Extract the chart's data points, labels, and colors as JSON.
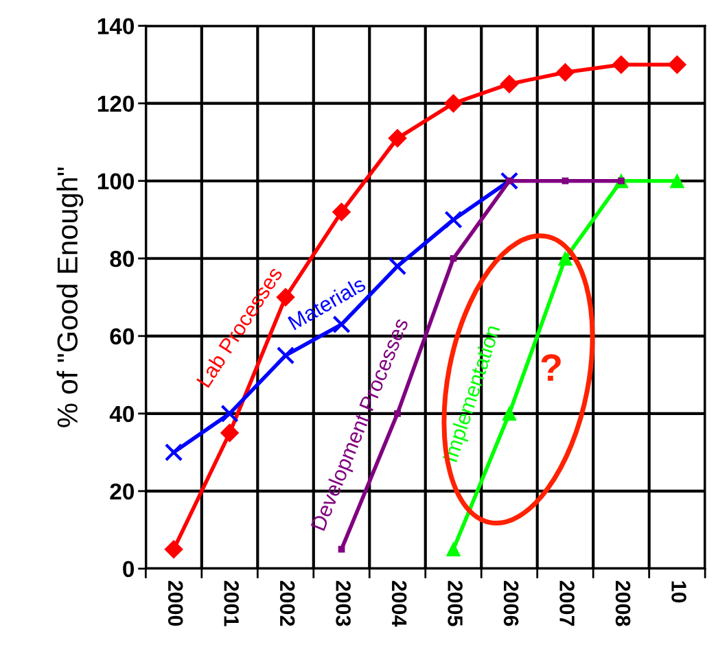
{
  "chart_data": {
    "type": "line",
    "ylabel": "% of \"Good Enough\"",
    "categories": [
      "2000",
      "2001",
      "2002",
      "2003",
      "2004",
      "2005",
      "2006",
      "2007",
      "2008",
      "10"
    ],
    "series": [
      {
        "name": "Lab Processes",
        "color": "#ff0000",
        "marker": "diamond",
        "values": [
          5,
          35,
          70,
          92,
          111,
          120,
          125,
          128,
          130,
          130
        ]
      },
      {
        "name": "Materials",
        "color": "#0000ff",
        "marker": "cross",
        "values": [
          30,
          40,
          55,
          63,
          78,
          90,
          100,
          null,
          null,
          null
        ]
      },
      {
        "name": "Development Processes",
        "color": "#800080",
        "marker": "square",
        "values": [
          null,
          null,
          null,
          5,
          40,
          80,
          100,
          100,
          100,
          null
        ]
      },
      {
        "name": "Implementation",
        "color": "#00ff00",
        "marker": "triangle",
        "values": [
          null,
          null,
          null,
          null,
          null,
          5,
          40,
          80,
          100,
          100
        ]
      }
    ],
    "annotations": [
      "?"
    ],
    "ylim": [
      0,
      140
    ],
    "yticks": [
      0,
      20,
      40,
      60,
      80,
      100,
      120,
      140
    ],
    "grid": true,
    "legend": false,
    "line_style": "solid"
  }
}
